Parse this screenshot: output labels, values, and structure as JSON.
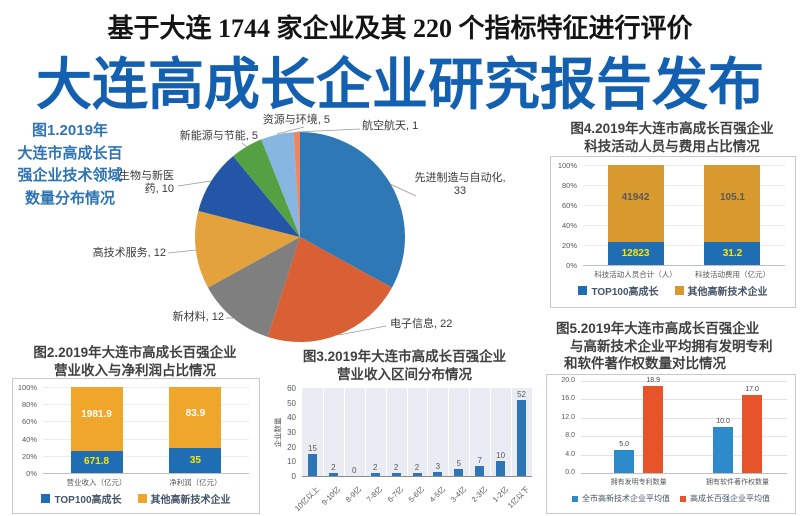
{
  "header": {
    "subtitle": "基于大连 1744 家企业及其 220 个指标特征进行评价",
    "title": "大连高成长企业研究报告发布"
  },
  "chart_data": [
    {
      "id": "fig1",
      "type": "pie",
      "caption_lines": [
        "图1.2019年",
        "大连市高成长百",
        "强企业技术领域",
        "数量分布情况"
      ],
      "title": "图1.2019年大连市高成长百强企业技术领域数量分布情况",
      "slices": [
        {
          "label": "先进制造与自动化",
          "value": 33,
          "color": "#2E79B5"
        },
        {
          "label": "电子信息",
          "value": 22,
          "color": "#D95F35"
        },
        {
          "label": "新材料",
          "value": 12,
          "color": "#7F7F7F"
        },
        {
          "label": "高技术服务",
          "value": 12,
          "color": "#E3A23C"
        },
        {
          "label": "生物与新医药",
          "value": 10,
          "color": "#2356A7"
        },
        {
          "label": "新能源与节能",
          "value": 5,
          "color": "#55A043"
        },
        {
          "label": "资源与环境",
          "value": 5,
          "color": "#87B7E0"
        },
        {
          "label": "航空航天",
          "value": 1,
          "color": "#EE8563"
        }
      ]
    },
    {
      "id": "fig2",
      "type": "stacked_bar_100",
      "title_lines": [
        "图2.2019年大连市高成长百强企业",
        "营业收入与净利润占比情况"
      ],
      "categories": [
        "营业收入（亿元）",
        "净利润（亿元）"
      ],
      "series": [
        {
          "name": "TOP100高成长",
          "color": "#1F6EB4",
          "values": [
            671.8,
            35
          ],
          "labels": [
            "671.8",
            "35"
          ],
          "label_color": "#FFE600"
        },
        {
          "name": "其他高新技术企业",
          "color": "#F0A62A",
          "values": [
            1981.9,
            83.9
          ],
          "labels": [
            "1981.9",
            "83.9"
          ],
          "label_color": "#FFFFFF"
        }
      ],
      "yticks": [
        "100%",
        "80%",
        "60%",
        "40%",
        "20%",
        "0%"
      ]
    },
    {
      "id": "fig3",
      "type": "bar",
      "title_lines": [
        "图3.2019年大连市高成长百强企业",
        "营业收入区间分布情况"
      ],
      "ylabel": "企业数量",
      "categories": [
        "10亿以上",
        "9-10亿",
        "8-9亿",
        "7-8亿",
        "6-7亿",
        "5-6亿",
        "4-5亿",
        "3-4亿",
        "2-3亿",
        "1-2亿",
        "1亿以下"
      ],
      "values": [
        15,
        2,
        0,
        2,
        2,
        2,
        3,
        5,
        7,
        10,
        52
      ],
      "bar_color": "#2E75B6",
      "yticks": [
        60,
        50,
        40,
        30,
        20,
        10,
        0
      ],
      "ylim": [
        0,
        60
      ]
    },
    {
      "id": "fig4",
      "type": "stacked_bar_100",
      "title_lines": [
        "图4.2019年大连市高成长百强企业",
        "科技活动人员与费用占比情况"
      ],
      "categories": [
        "科技活动人员合计（人）",
        "科技活动费用（亿元）"
      ],
      "series": [
        {
          "name": "TOP100高成长",
          "color": "#1F6EB4",
          "values": [
            12823,
            31.2
          ],
          "labels": [
            "12823",
            "31.2"
          ],
          "label_color": "#FFE600"
        },
        {
          "name": "其他高新技术企业",
          "color": "#D8992F",
          "values": [
            41942,
            105.1
          ],
          "labels": [
            "41942",
            "105.1"
          ],
          "label_color": "#595959"
        }
      ],
      "yticks": [
        "100%",
        "80%",
        "60%",
        "40%",
        "20%",
        "0%"
      ]
    },
    {
      "id": "fig5",
      "type": "grouped_bar",
      "title_lines": [
        "图5.2019年大连市高成长百强企业",
        "与高新技术企业平均拥有发明专利",
        "和软件著作权数量对比情况"
      ],
      "categories": [
        "拥有发明专利数量",
        "拥有软件著作权数量"
      ],
      "series": [
        {
          "name": "全市高新技术企业平均值",
          "color": "#2D8BCB",
          "values": [
            5.0,
            10.0
          ],
          "labels": [
            "5.0",
            "10.0"
          ]
        },
        {
          "name": "高成长百强企业平均值",
          "color": "#E8542A",
          "values": [
            18.9,
            17.0
          ],
          "labels": [
            "18.9",
            "17.0"
          ]
        }
      ],
      "yticks": [
        "20.0",
        "16.0",
        "12.0",
        "8.0",
        "4.0",
        "0.0"
      ],
      "ylim": [
        0,
        20
      ]
    }
  ]
}
